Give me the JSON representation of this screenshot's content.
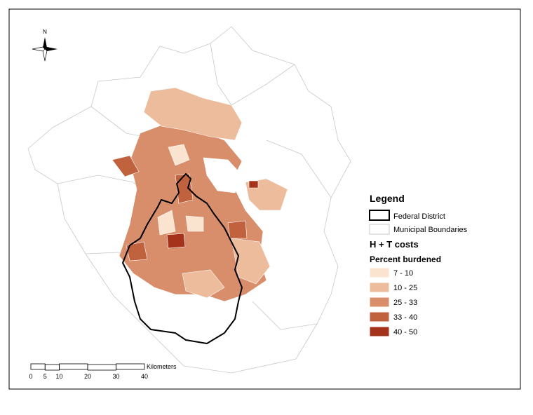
{
  "north_label": "N",
  "legend": {
    "title": "Legend",
    "items": [
      {
        "label": "Federal District"
      },
      {
        "label": "Municipal Boundaries"
      }
    ],
    "subtitle": "H + T costs",
    "class_title": "Percent burdened",
    "classes": [
      {
        "label": "7 - 10",
        "color": "#fbe4cf"
      },
      {
        "label": "10 - 25",
        "color": "#ecbc9c"
      },
      {
        "label": "25 - 33",
        "color": "#d88e6b"
      },
      {
        "label": "33 - 40",
        "color": "#c1623f"
      },
      {
        "label": "40 - 50",
        "color": "#a5321b"
      }
    ]
  },
  "scale_bar": {
    "unit": "Kilometers",
    "ticks": [
      0,
      5,
      10,
      20,
      30,
      40
    ]
  }
}
